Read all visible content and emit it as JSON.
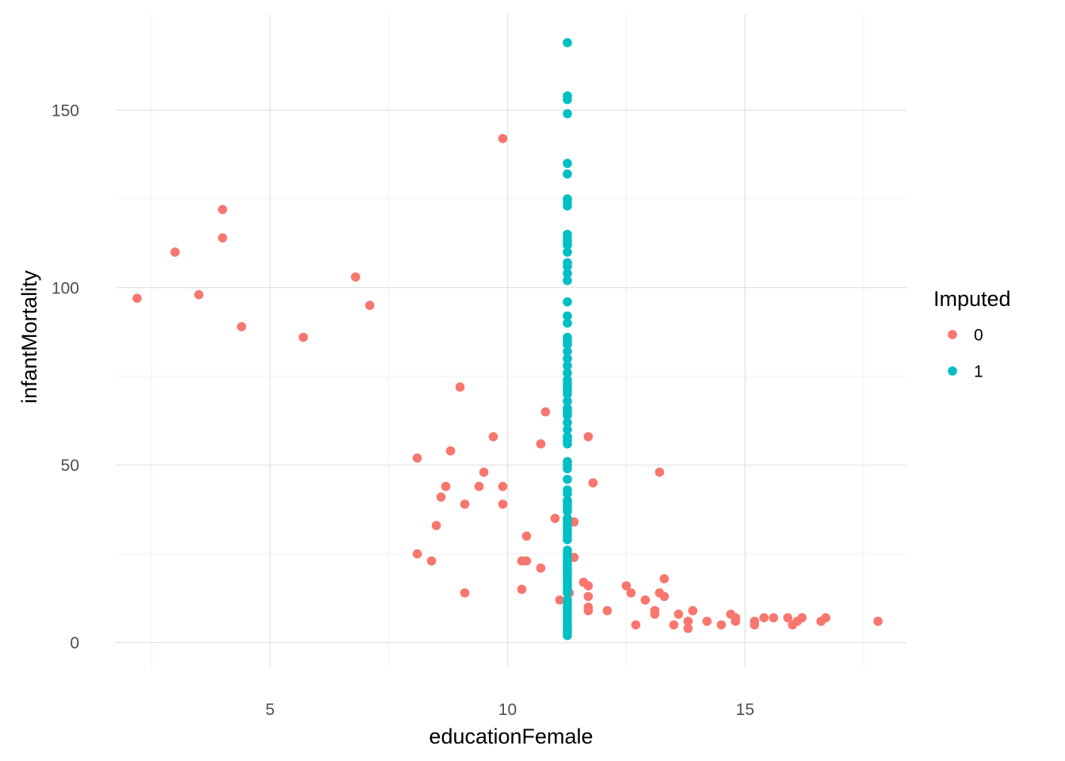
{
  "chart_data": {
    "type": "scatter",
    "title": "",
    "xlabel": "educationFemale",
    "ylabel": "infantMortality",
    "xlim": [
      1.75,
      18.4
    ],
    "ylim": [
      -7,
      177
    ],
    "x_ticks": [
      5,
      10,
      15
    ],
    "x_tick_labels": [
      "5",
      "10",
      "15"
    ],
    "x_minor_ticks": [
      2.5,
      7.5,
      12.5,
      17.5
    ],
    "y_ticks": [
      0,
      50,
      100,
      150
    ],
    "y_tick_labels": [
      "0",
      "50",
      "100",
      "150"
    ],
    "y_minor_ticks": [
      25,
      75,
      125
    ],
    "grid": true,
    "legend": {
      "title": "Imputed",
      "position": "right"
    },
    "series": [
      {
        "name": "0",
        "color": "#F8766D",
        "points": [
          [
            2.2,
            97
          ],
          [
            3.0,
            110
          ],
          [
            3.5,
            98
          ],
          [
            4.0,
            122
          ],
          [
            4.0,
            114
          ],
          [
            4.4,
            89
          ],
          [
            5.7,
            86
          ],
          [
            6.8,
            103
          ],
          [
            7.1,
            95
          ],
          [
            8.1,
            52
          ],
          [
            8.8,
            54
          ],
          [
            9.0,
            72
          ],
          [
            9.5,
            48
          ],
          [
            9.7,
            58
          ],
          [
            9.9,
            142
          ],
          [
            10.7,
            56
          ],
          [
            10.8,
            65
          ],
          [
            8.7,
            44
          ],
          [
            8.6,
            41
          ],
          [
            9.4,
            44
          ],
          [
            9.9,
            44
          ],
          [
            9.1,
            39
          ],
          [
            9.9,
            39
          ],
          [
            8.5,
            33
          ],
          [
            10.4,
            30
          ],
          [
            11.0,
            35
          ],
          [
            11.4,
            34
          ],
          [
            8.1,
            25
          ],
          [
            8.4,
            23
          ],
          [
            10.3,
            23
          ],
          [
            10.4,
            23
          ],
          [
            10.7,
            21
          ],
          [
            9.1,
            14
          ],
          [
            10.3,
            15
          ],
          [
            11.1,
            12
          ],
          [
            11.3,
            14
          ],
          [
            11.4,
            24
          ],
          [
            11.6,
            17
          ],
          [
            11.7,
            16
          ],
          [
            11.7,
            13
          ],
          [
            11.7,
            10
          ],
          [
            11.7,
            9
          ],
          [
            11.7,
            58
          ],
          [
            11.8,
            45
          ],
          [
            12.1,
            9
          ],
          [
            12.5,
            16
          ],
          [
            12.6,
            14
          ],
          [
            12.7,
            5
          ],
          [
            12.9,
            12
          ],
          [
            13.1,
            9
          ],
          [
            13.1,
            8
          ],
          [
            13.2,
            14
          ],
          [
            13.2,
            48
          ],
          [
            13.3,
            18
          ],
          [
            13.3,
            13
          ],
          [
            13.5,
            5
          ],
          [
            13.6,
            8
          ],
          [
            13.8,
            4
          ],
          [
            13.8,
            6
          ],
          [
            13.9,
            9
          ],
          [
            14.2,
            6
          ],
          [
            14.5,
            5
          ],
          [
            14.7,
            8
          ],
          [
            14.8,
            7
          ],
          [
            14.8,
            6
          ],
          [
            15.2,
            6
          ],
          [
            15.2,
            5
          ],
          [
            15.4,
            7
          ],
          [
            15.6,
            7
          ],
          [
            15.9,
            7
          ],
          [
            16.0,
            5
          ],
          [
            16.1,
            6
          ],
          [
            16.2,
            7
          ],
          [
            16.6,
            6
          ],
          [
            16.7,
            7
          ],
          [
            17.8,
            6
          ]
        ]
      },
      {
        "name": "1",
        "color": "#00BFC4",
        "points": [
          [
            11.26,
            169
          ],
          [
            11.26,
            154
          ],
          [
            11.26,
            153
          ],
          [
            11.26,
            149
          ],
          [
            11.26,
            135
          ],
          [
            11.26,
            132
          ],
          [
            11.26,
            125
          ],
          [
            11.26,
            124
          ],
          [
            11.26,
            123
          ],
          [
            11.26,
            115
          ],
          [
            11.26,
            114
          ],
          [
            11.26,
            113
          ],
          [
            11.26,
            112
          ],
          [
            11.26,
            110
          ],
          [
            11.26,
            107
          ],
          [
            11.26,
            106
          ],
          [
            11.26,
            104
          ],
          [
            11.26,
            102
          ],
          [
            11.26,
            96
          ],
          [
            11.26,
            92
          ],
          [
            11.26,
            90
          ],
          [
            11.26,
            86
          ],
          [
            11.26,
            85
          ],
          [
            11.26,
            84
          ],
          [
            11.26,
            82
          ],
          [
            11.26,
            80
          ],
          [
            11.26,
            78
          ],
          [
            11.26,
            76
          ],
          [
            11.26,
            74
          ],
          [
            11.26,
            73
          ],
          [
            11.26,
            72
          ],
          [
            11.26,
            71
          ],
          [
            11.26,
            70
          ],
          [
            11.26,
            68
          ],
          [
            11.26,
            66
          ],
          [
            11.26,
            65
          ],
          [
            11.26,
            64
          ],
          [
            11.26,
            62
          ],
          [
            11.26,
            60
          ],
          [
            11.26,
            58
          ],
          [
            11.26,
            57
          ],
          [
            11.26,
            56
          ],
          [
            11.26,
            51
          ],
          [
            11.26,
            50
          ],
          [
            11.26,
            49
          ],
          [
            11.26,
            46
          ],
          [
            11.26,
            43
          ],
          [
            11.26,
            42
          ],
          [
            11.26,
            40
          ],
          [
            11.26,
            39
          ],
          [
            11.26,
            38
          ],
          [
            11.26,
            37
          ],
          [
            11.26,
            35
          ],
          [
            11.26,
            34
          ],
          [
            11.26,
            33
          ],
          [
            11.26,
            32
          ],
          [
            11.26,
            31
          ],
          [
            11.26,
            30
          ],
          [
            11.26,
            29
          ],
          [
            11.26,
            26
          ],
          [
            11.26,
            25
          ],
          [
            11.26,
            24
          ],
          [
            11.26,
            23
          ],
          [
            11.26,
            22
          ],
          [
            11.26,
            21
          ],
          [
            11.26,
            20
          ],
          [
            11.26,
            19
          ],
          [
            11.26,
            18
          ],
          [
            11.26,
            17
          ],
          [
            11.26,
            16
          ],
          [
            11.26,
            15
          ],
          [
            11.26,
            14
          ],
          [
            11.26,
            12
          ],
          [
            11.26,
            11
          ],
          [
            11.26,
            10
          ],
          [
            11.26,
            9
          ],
          [
            11.26,
            8
          ],
          [
            11.26,
            7
          ],
          [
            11.26,
            6
          ],
          [
            11.26,
            5
          ],
          [
            11.26,
            4
          ],
          [
            11.26,
            3
          ],
          [
            11.26,
            2
          ]
        ]
      }
    ]
  }
}
